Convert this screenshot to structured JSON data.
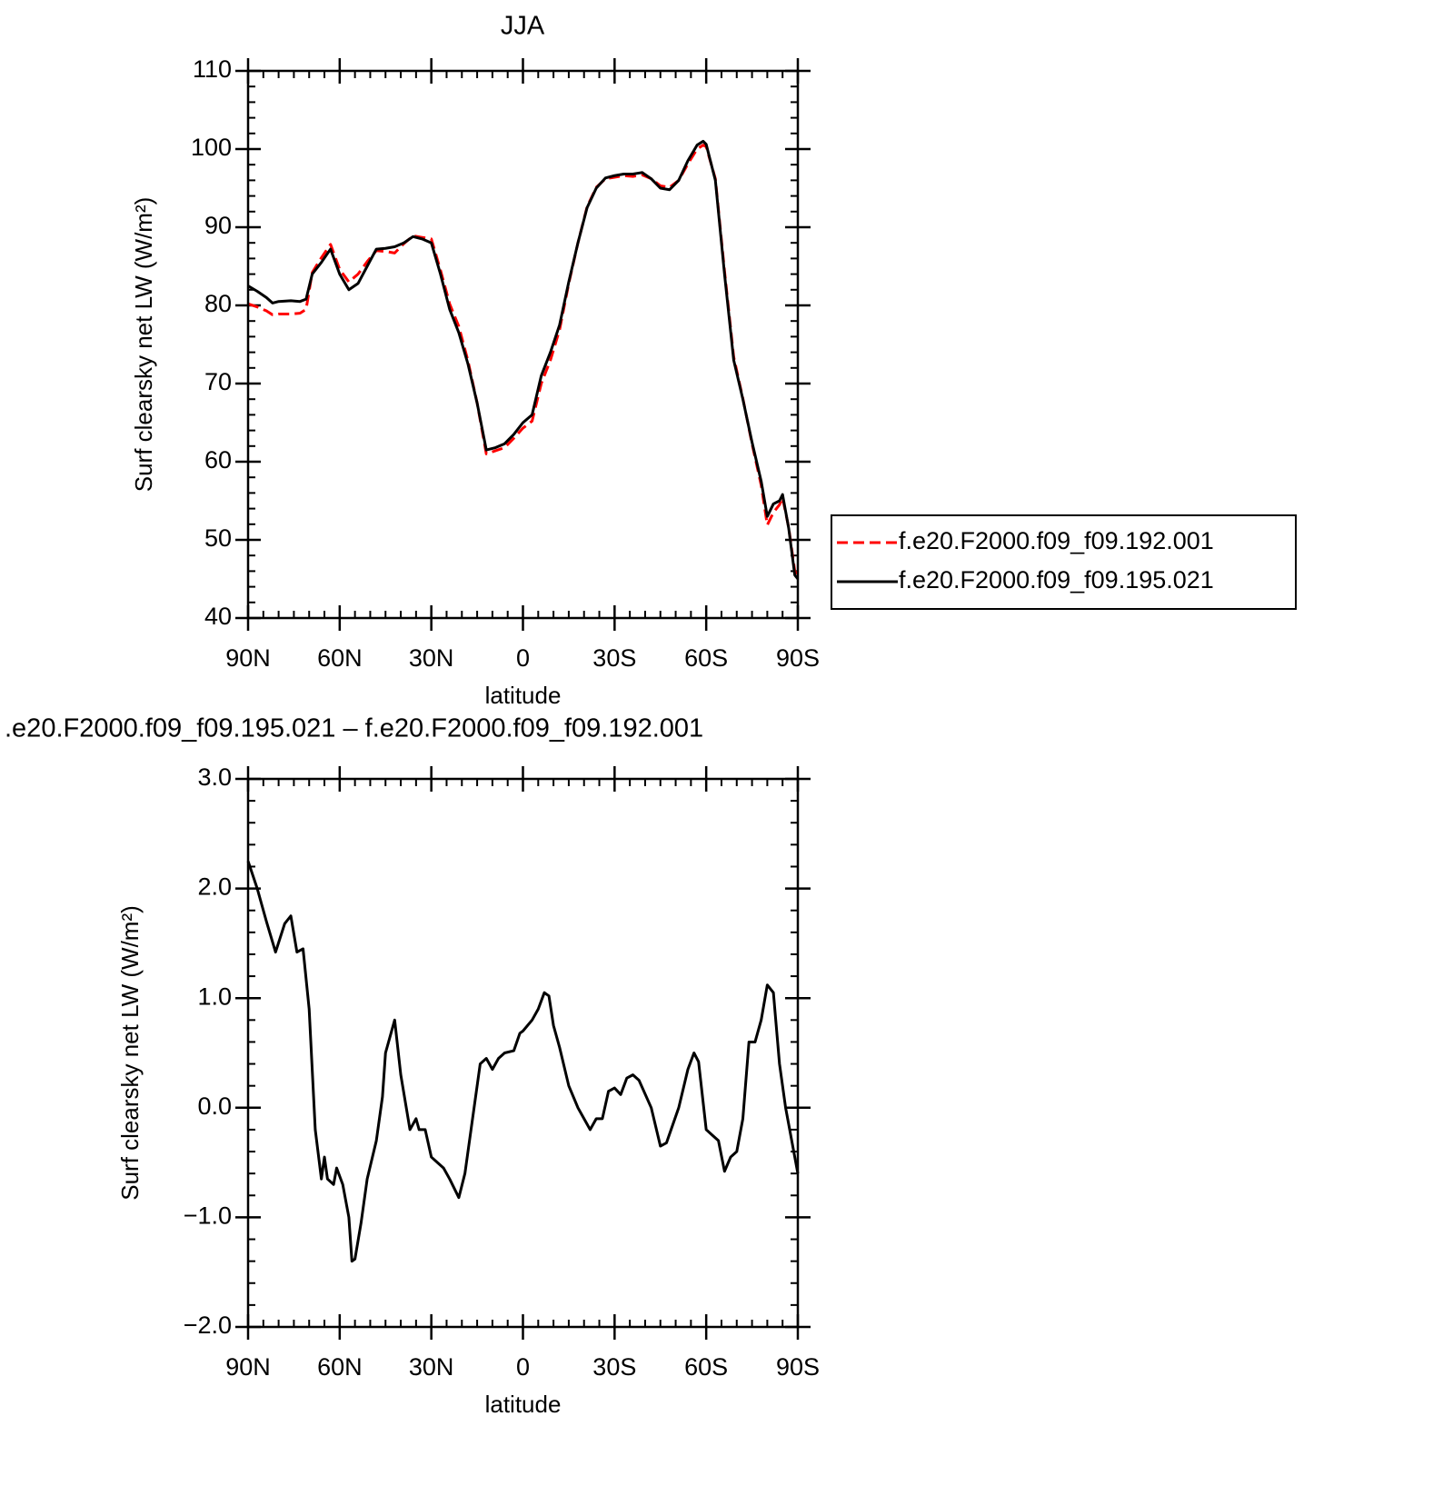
{
  "chart_data": [
    {
      "type": "line",
      "title": "JJA",
      "ylabel": "Surf clearsky net LW (W/m²)",
      "xlabel": "latitude",
      "x": [
        90,
        87,
        84,
        82,
        80,
        76,
        73,
        71,
        69,
        66,
        63,
        60,
        57,
        54,
        51,
        48,
        45,
        42,
        39,
        36,
        33,
        30,
        27,
        24,
        21,
        18,
        15,
        12,
        9,
        6,
        3,
        0,
        -3,
        -6,
        -9,
        -12,
        -15,
        -18,
        -21,
        -24,
        -27,
        -30,
        -33,
        -36,
        -39,
        -42,
        -45,
        -48,
        -51,
        -54,
        -57,
        -59,
        -60,
        -63,
        -66,
        -69,
        -72,
        -75,
        -78,
        -80,
        -82,
        -84,
        -85,
        -87,
        -89,
        -90
      ],
      "xlim": [
        90,
        -90
      ],
      "xticks": [
        {
          "value": 90,
          "label": "90N"
        },
        {
          "value": 60,
          "label": "60N"
        },
        {
          "value": 30,
          "label": "30N"
        },
        0,
        {
          "value": -30,
          "label": "30S"
        },
        {
          "value": -60,
          "label": "60S"
        },
        {
          "value": -90,
          "label": "90S"
        }
      ],
      "ylim": [
        40,
        110
      ],
      "yticks": [
        40,
        50,
        60,
        70,
        80,
        90,
        100,
        110
      ],
      "legend": "right",
      "series": [
        {
          "name": "f.e20.F2000.f09_f09.192.001",
          "color": "#ff0000",
          "style": "dashed",
          "values": [
            80.2,
            79.8,
            79.3,
            78.8,
            78.9,
            78.9,
            79.0,
            79.5,
            84.2,
            86.1,
            87.8,
            84.6,
            83,
            84,
            85.6,
            87.0,
            86.9,
            86.7,
            87.9,
            88.9,
            88.7,
            88.5,
            84.5,
            80.2,
            77.3,
            72.9,
            67.5,
            61.0,
            61.4,
            61.8,
            63,
            64.3,
            65.2,
            70,
            73,
            76.9,
            82.8,
            88,
            92.6,
            95.1,
            96.2,
            96.4,
            96.6,
            96.5,
            96.7,
            96.2,
            95.3,
            95.1,
            96,
            98.1,
            100,
            100.5,
            100.3,
            96.2,
            84.4,
            73.4,
            68.1,
            62.3,
            57,
            51.9,
            53.5,
            54.5,
            55.4,
            51.6,
            46,
            45.6
          ]
        },
        {
          "name": "f.e20.F2000.f09_f09.195.021",
          "color": "#000000",
          "style": "solid",
          "values": [
            82.5,
            81.8,
            81,
            80.3,
            80.5,
            80.6,
            80.5,
            80.8,
            84,
            85.5,
            87.2,
            84,
            82,
            82.8,
            85,
            87.2,
            87.3,
            87.5,
            88,
            88.8,
            88.5,
            88,
            84,
            79.5,
            76.5,
            72.5,
            67.5,
            61.5,
            61.8,
            62.3,
            63.5,
            65,
            66,
            71,
            74,
            77.5,
            83,
            88,
            92.5,
            95,
            96.3,
            96.6,
            96.8,
            96.8,
            97,
            96.2,
            95,
            94.8,
            96,
            98.5,
            100.5,
            101,
            100.6,
            96,
            84,
            73,
            68,
            62.5,
            57.5,
            53,
            54.6,
            55,
            55.8,
            51.5,
            45.5,
            45
          ]
        }
      ]
    },
    {
      "type": "line",
      "title": ".e20.F2000.f09_f09.195.021 – f.e20.F2000.f09_f09.192.001",
      "ylabel": "Surf clearsky net LW (W/m²)",
      "xlabel": "latitude",
      "x": [
        90,
        87,
        84,
        81,
        78,
        76,
        74,
        72,
        70,
        68,
        66,
        65,
        64,
        62,
        61,
        59,
        57,
        56,
        55,
        53,
        51,
        48,
        46,
        45,
        42,
        40,
        37,
        35,
        34,
        32,
        30,
        28,
        26,
        24,
        21,
        19,
        16,
        14,
        12,
        10,
        8,
        6,
        3,
        1,
        0,
        -3,
        -5,
        -7,
        -8.5,
        -10,
        -12,
        -15,
        -18,
        -21,
        -22,
        -24,
        -26,
        -28,
        -30,
        -32,
        -34,
        -36,
        -38,
        -42,
        -45,
        -47,
        -51,
        -54,
        -56,
        -57.5,
        -60,
        -62,
        -64,
        -66,
        -68,
        -70,
        -72,
        -74,
        -76,
        -78,
        -80,
        -82,
        -84,
        -86,
        -88,
        -90
      ],
      "xlim": [
        90,
        -90
      ],
      "xticks": [
        {
          "value": 90,
          "label": "90N"
        },
        {
          "value": 60,
          "label": "60N"
        },
        {
          "value": 30,
          "label": "30N"
        },
        0,
        {
          "value": -30,
          "label": "30S"
        },
        {
          "value": -60,
          "label": "60S"
        },
        {
          "value": -90,
          "label": "90S"
        }
      ],
      "ylim": [
        -2,
        3
      ],
      "yticks": [
        {
          "value": -2,
          "label": "−2.0"
        },
        {
          "value": -1,
          "label": "−1.0"
        },
        {
          "value": 0,
          "label": "0.0"
        },
        {
          "value": 1,
          "label": "1.0"
        },
        {
          "value": 2,
          "label": "2.0"
        },
        {
          "value": 3,
          "label": "3.0"
        }
      ],
      "series": [
        {
          "color": "#000000",
          "style": "solid",
          "values": [
            2.25,
            2.0,
            1.7,
            1.42,
            1.68,
            1.75,
            1.42,
            1.45,
            0.9,
            -0.2,
            -0.65,
            -0.45,
            -0.65,
            -0.7,
            -0.55,
            -0.7,
            -1.0,
            -1.4,
            -1.38,
            -1.05,
            -0.65,
            -0.3,
            0.1,
            0.5,
            0.8,
            0.3,
            -0.2,
            -0.1,
            -0.2,
            -0.2,
            -0.45,
            -0.5,
            -0.55,
            -0.65,
            -0.82,
            -0.6,
            0.0,
            0.4,
            0.45,
            0.35,
            0.45,
            0.5,
            0.52,
            0.68,
            0.7,
            0.8,
            0.9,
            1.05,
            1.02,
            0.75,
            0.55,
            0.2,
            0.0,
            -0.15,
            -0.2,
            -0.1,
            -0.1,
            0.15,
            0.18,
            0.12,
            0.27,
            0.3,
            0.25,
            0.0,
            -0.35,
            -0.32,
            0.0,
            0.35,
            0.5,
            0.42,
            -0.2,
            -0.25,
            -0.3,
            -0.58,
            -0.45,
            -0.4,
            -0.1,
            0.6,
            0.6,
            0.8,
            1.12,
            1.05,
            0.4,
            0.0,
            -0.3,
            -0.6
          ]
        }
      ]
    }
  ]
}
